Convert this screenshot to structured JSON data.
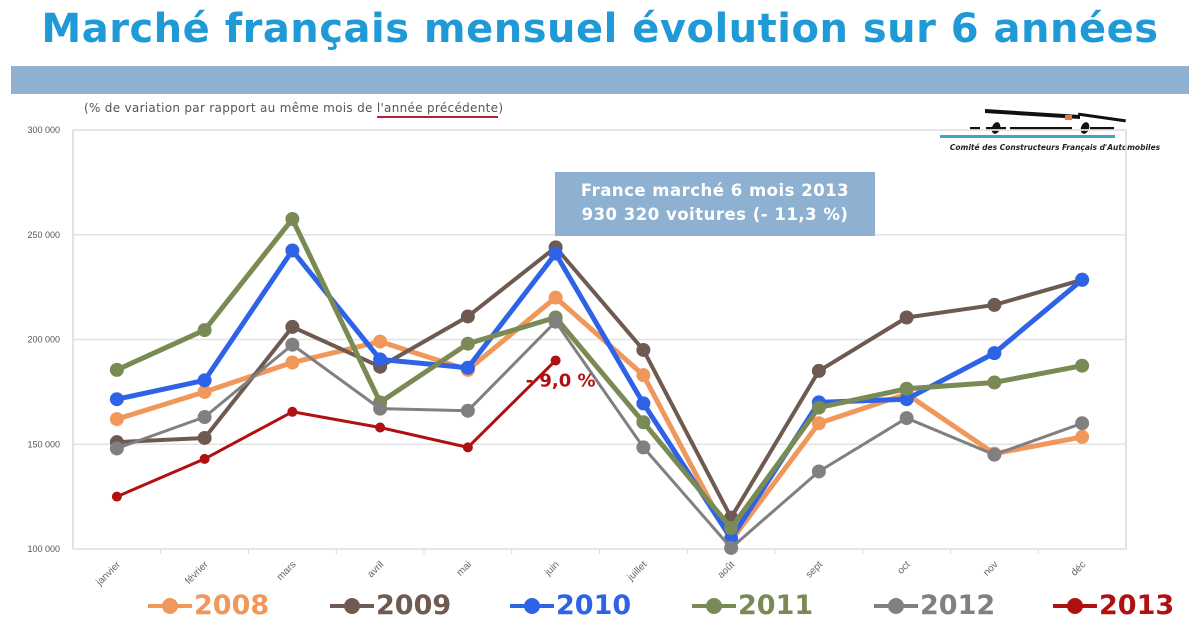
{
  "title": "Marché français mensuel évolution sur 6 années",
  "subtitle_prefix": "(% de variation par rapport au même mois de ",
  "subtitle_underlined": "l'année précédente",
  "subtitle_suffix": ")",
  "logo": {
    "caption": "Comité des Constructeurs Français d'Automobiles"
  },
  "callout": {
    "line1": "France marché 6 mois 2013",
    "line2": "930 320 voitures  (-  11,3 %)"
  },
  "chart_data": {
    "type": "line",
    "title": "Marché français mensuel évolution sur 6 années",
    "xlabel": "",
    "ylabel": "",
    "ylim": [
      100000,
      300000
    ],
    "yticks": [
      100000,
      150000,
      200000,
      250000,
      300000
    ],
    "ytick_labels": [
      "100 000",
      "150 000",
      "200 000",
      "250 000",
      "300 000"
    ],
    "grid": true,
    "legend_position": "bottom",
    "categories": [
      "janvier",
      "février",
      "mars",
      "avril",
      "mai",
      "juin",
      "juillet",
      "août",
      "sept",
      "oct",
      "nov",
      "déc"
    ],
    "series": [
      {
        "name": "2008",
        "color": "#f0975c",
        "values": [
          162000,
          175000,
          189000,
          199000,
          185500,
          220000,
          183000,
          104000,
          160000,
          174000,
          145500,
          153500
        ]
      },
      {
        "name": "2009",
        "color": "#6e5a50",
        "values": [
          151000,
          153000,
          206000,
          187000,
          211000,
          244000,
          195000,
          115000,
          185000,
          210500,
          216500,
          228500
        ]
      },
      {
        "name": "2010",
        "color": "#2e63e8",
        "values": [
          171500,
          180500,
          242500,
          190500,
          186500,
          241000,
          169500,
          105000,
          170000,
          171500,
          193500,
          228500
        ]
      },
      {
        "name": "2011",
        "color": "#7a8a55",
        "values": [
          185500,
          204500,
          257500,
          170000,
          198000,
          210500,
          160500,
          110000,
          167500,
          176500,
          179500,
          187500
        ]
      },
      {
        "name": "2012",
        "color": "#808080",
        "values": [
          148000,
          163000,
          197500,
          167000,
          166000,
          208500,
          148500,
          100500,
          137000,
          162500,
          145000,
          160000
        ]
      },
      {
        "name": "2013",
        "color": "#b01010",
        "values": [
          125000,
          143000,
          165500,
          158000,
          148500,
          190000,
          null,
          null,
          null,
          null,
          null,
          null
        ]
      }
    ],
    "annotations": [
      {
        "text": "- 9,0 %",
        "category": "juin",
        "series": "2013",
        "color": "#b01010"
      }
    ]
  }
}
